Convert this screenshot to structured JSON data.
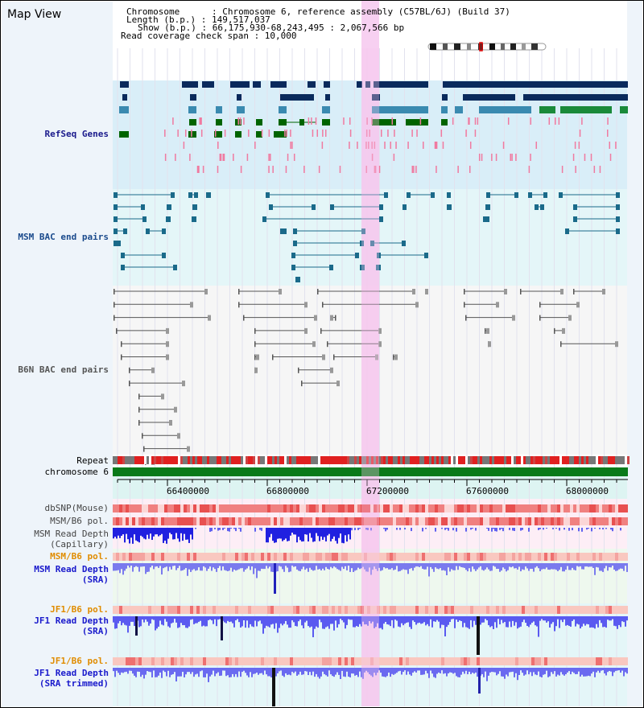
{
  "app": {
    "title": "Map View"
  },
  "info": {
    "chromosome_line": "Chromosome      : Chromosome 6, reference assembly (C57BL/6J) (Build 37)",
    "length_line": "Length (b.p.) : 149,517,037",
    "show_line": "Show (b.p.) : 66,175,930-68,243,495 : 2,067,566 bp",
    "coverage_line": "Read coverage check span : 10,000"
  },
  "tracks": {
    "refseq": "RefSeq Genes",
    "msm_bac": "MSM BAC end pairs",
    "b6n_bac": "B6N BAC end pairs",
    "repeat": "Repeat",
    "chromosome": "chromosome 6",
    "dbsnp": "dbSNP(Mouse)",
    "msm_b6_pol_1": "MSM/B6 pol.",
    "msm_depth_cap_1": "MSM Read Depth",
    "msm_depth_cap_2": "(Capillary)",
    "msm_b6_pol_2": "MSM/B6 pol.",
    "msm_depth_sra_1": "MSM Read Depth",
    "msm_depth_sra_2": "(SRA)",
    "jf1_b6_pol_1": "JF1/B6 pol.",
    "jf1_depth_sra_1": "JF1 Read Depth",
    "jf1_depth_sra_2": "(SRA)",
    "jf1_b6_pol_2": "JF1/B6 pol.",
    "jf1_depth_trim_1": "JF1 Read Depth",
    "jf1_depth_trim_2": "(SRA trimmed)"
  },
  "axis": {
    "ticks": [
      "66400000",
      "66800000",
      "67200000",
      "67600000",
      "68000000"
    ]
  },
  "colors": {
    "refseq_label": "#1a1a8c",
    "msm_label": "#1a4a8c",
    "b6n_label": "#444444",
    "pol_label": "#e08c00",
    "depth_label": "#1a1acc",
    "navy": "#0a2a5c",
    "teal": "#3a8ab0",
    "green": "#006400",
    "pink": "#f07aa0",
    "highlight": "#f6c8ee"
  }
}
